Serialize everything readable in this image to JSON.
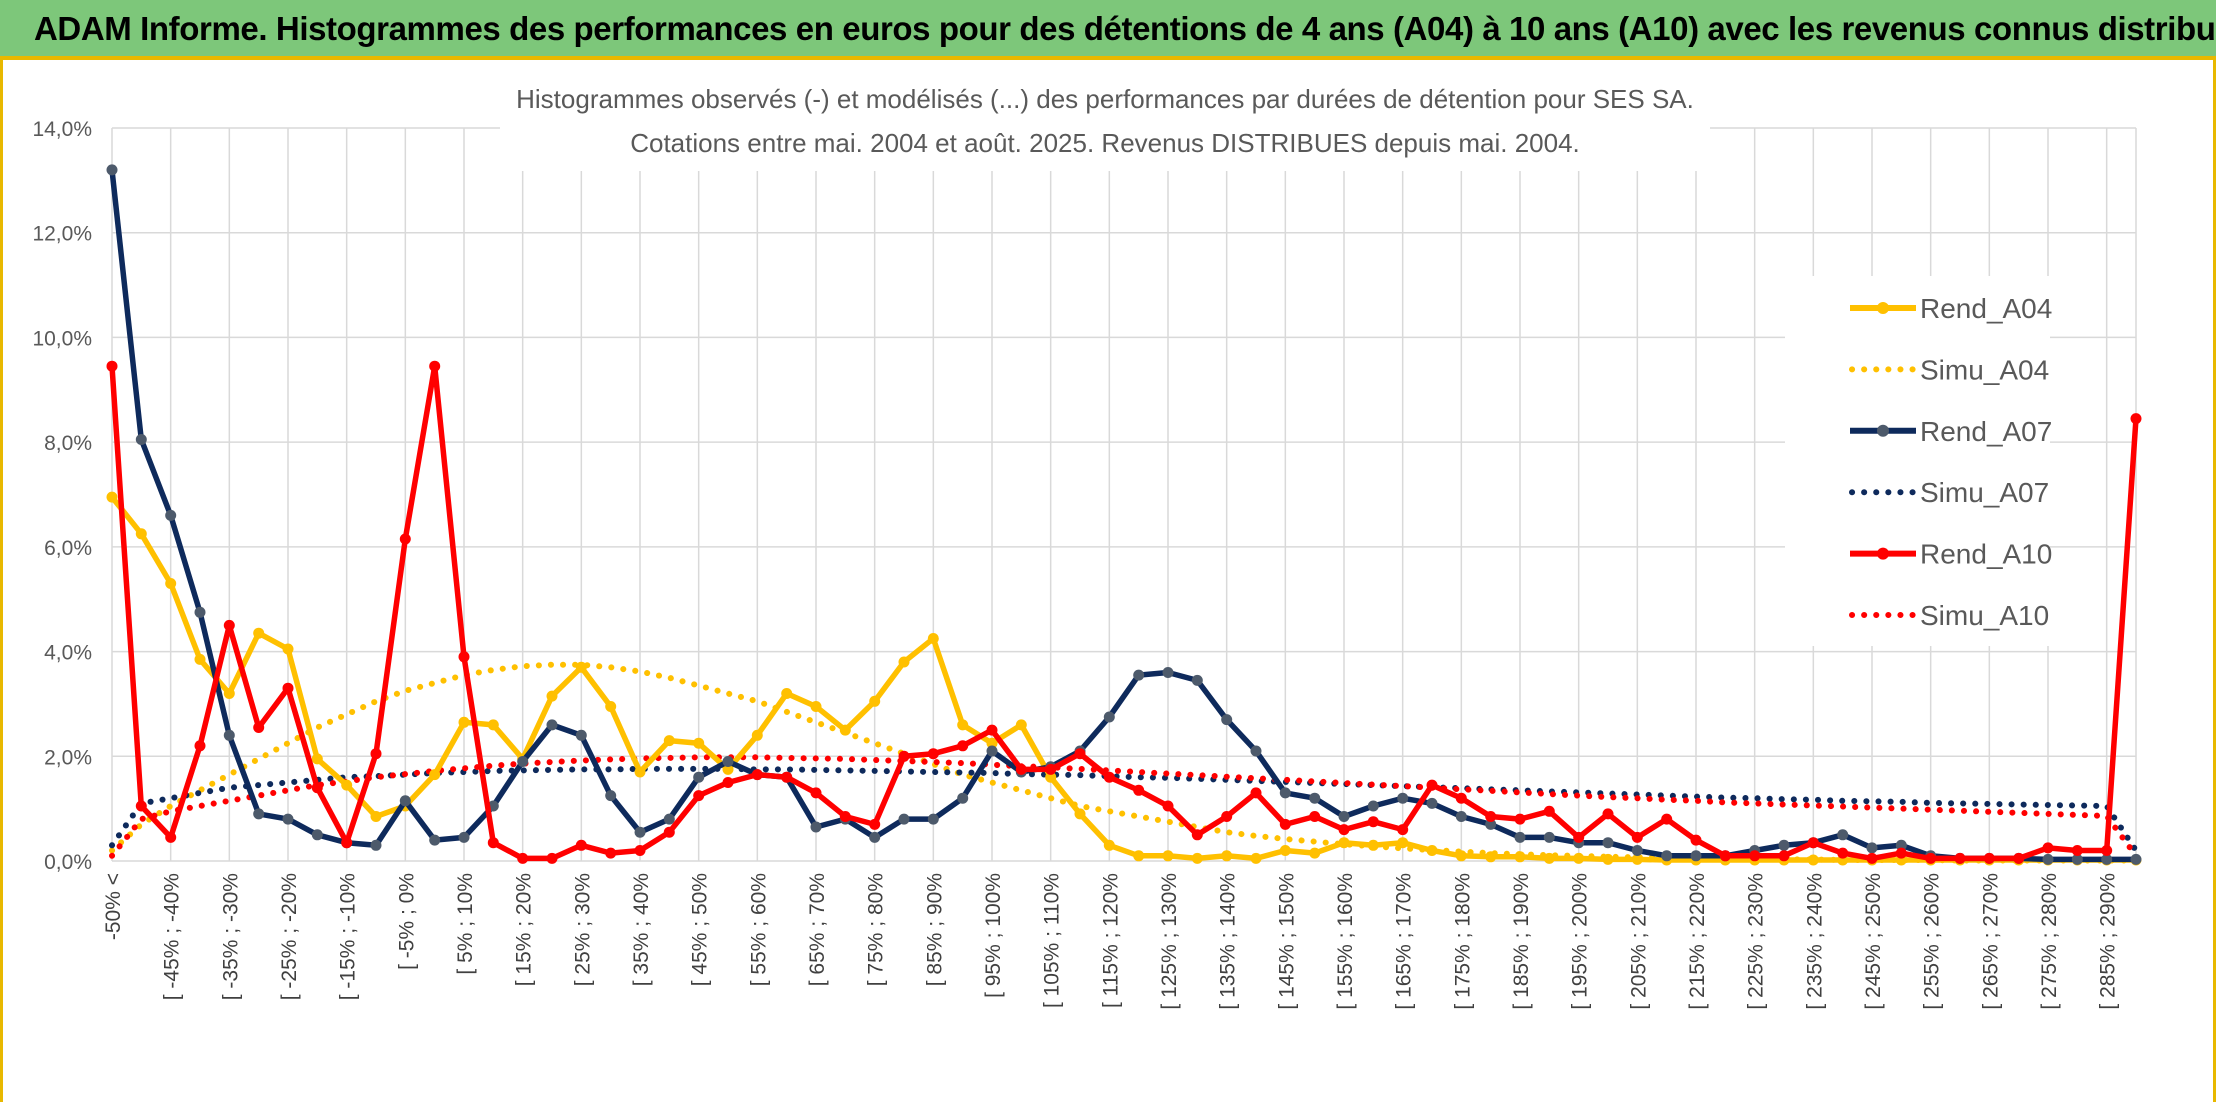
{
  "banner": {
    "title": "ADAM Informe. Histogrammes des performances en euros pour des détentions de 4 ans (A04) à 10 ans (A10) avec les revenus connus distribués"
  },
  "colors": {
    "banner_bg": "#7dc77a",
    "banner_rule": "#e8b800",
    "a04": "#ffc000",
    "a07": "#0e2a5c",
    "a07_marker": "#4d5a6b",
    "a10": "#ff0000",
    "grid": "#d9d9d9"
  },
  "chart_data": {
    "type": "line",
    "title": "Histogrammes observés (-) et modélisés (...) des performances par durées de détention pour SES SA.",
    "subtitle": "Cotations entre mai. 2004 et août. 2025. Revenus DISTRIBUES depuis mai. 2004.",
    "xlabel": "",
    "ylabel": "",
    "ylim": [
      0,
      14
    ],
    "yticks": [
      "0,0%",
      "2,0%",
      "4,0%",
      "6,0%",
      "8,0%",
      "10,0%",
      "12,0%",
      "14,0%"
    ],
    "grid": true,
    "legend_position": "right",
    "n_points": 70,
    "x_tick_labels": [
      "-50% <",
      "[ -45% ; -40%",
      "[ -35% ; -30%",
      "[ -25% ; -20%",
      "[ -15% ; -10%",
      "[ -5% ; 0%",
      "[ 5% ; 10%",
      "[ 15% ; 20%",
      "[ 25% ; 30%",
      "[ 35% ; 40%",
      "[ 45% ; 50%",
      "[ 55% ; 60%",
      "[ 65% ; 70%",
      "[ 75% ; 80%",
      "[ 85% ; 90%",
      "[ 95% ; 100%",
      "[ 105% ; 110%",
      "[ 115% ; 120%",
      "[ 125% ; 130%",
      "[ 135% ; 140%",
      "[ 145% ; 150%",
      "[ 155% ; 160%",
      "[ 165% ; 170%",
      "[ 175% ; 180%",
      "[ 185% ; 190%",
      "[ 195% ; 200%",
      "[ 205% ; 210%",
      "[ 215% ; 220%",
      "[ 225% ; 230%",
      "[ 235% ; 240%",
      "[ 245% ; 250%",
      "[ 255% ; 260%",
      "[ 265% ; 270%",
      "[ 275% ; 280%",
      "[ 285% ; 290%"
    ],
    "series": [
      {
        "name": "Rend_A04",
        "style": "solid",
        "color": "#ffc000",
        "values": [
          6.95,
          6.25,
          5.3,
          3.85,
          3.2,
          4.35,
          4.05,
          1.95,
          1.45,
          0.85,
          1.05,
          1.65,
          2.65,
          2.6,
          1.95,
          3.15,
          3.7,
          2.95,
          1.7,
          2.3,
          2.25,
          1.75,
          2.4,
          3.2,
          2.95,
          2.5,
          3.05,
          3.8,
          4.25,
          2.6,
          2.25,
          2.6,
          1.6,
          0.9,
          0.3,
          0.1,
          0.1,
          0.05,
          0.1,
          0.05,
          0.2,
          0.15,
          0.35,
          0.3,
          0.35,
          0.2,
          0.1,
          0.08,
          0.08,
          0.05,
          0.05,
          0.03,
          0.03,
          0.02,
          0.02,
          0.02,
          0.02,
          0.02,
          0.02,
          0.02,
          0.02,
          0.02,
          0.02,
          0.02,
          0.02,
          0.02,
          0.02,
          0.02,
          0.02,
          0.02
        ]
      },
      {
        "name": "Simu_A04",
        "style": "dotted",
        "color": "#ffc000",
        "values": [
          0.2,
          0.7,
          1.05,
          1.35,
          1.65,
          1.95,
          2.25,
          2.55,
          2.8,
          3.05,
          3.25,
          3.4,
          3.55,
          3.65,
          3.72,
          3.75,
          3.75,
          3.7,
          3.62,
          3.5,
          3.35,
          3.2,
          3.05,
          2.85,
          2.65,
          2.45,
          2.25,
          2.05,
          1.85,
          1.65,
          1.5,
          1.35,
          1.2,
          1.05,
          0.95,
          0.85,
          0.75,
          0.65,
          0.55,
          0.48,
          0.42,
          0.37,
          0.32,
          0.28,
          0.24,
          0.21,
          0.18,
          0.15,
          0.13,
          0.11,
          0.1,
          0.08,
          0.07,
          0.06,
          0.05,
          0.04,
          0.04,
          0.03,
          0.03,
          0.02,
          0.02,
          0.02,
          0.02,
          0.01,
          0.01,
          0.01,
          0.01,
          0.01,
          0.01,
          0.01
        ]
      },
      {
        "name": "Rend_A07",
        "style": "solid",
        "color": "#0e2a5c",
        "values": [
          13.2,
          8.05,
          6.6,
          4.75,
          2.4,
          0.9,
          0.8,
          0.5,
          0.35,
          0.3,
          1.15,
          0.4,
          0.45,
          1.05,
          1.9,
          2.6,
          2.4,
          1.25,
          0.55,
          0.8,
          1.6,
          1.9,
          1.65,
          1.6,
          0.65,
          0.8,
          0.45,
          0.8,
          0.8,
          1.2,
          2.1,
          1.7,
          1.8,
          2.1,
          2.75,
          3.55,
          3.6,
          3.45,
          2.7,
          2.1,
          1.3,
          1.2,
          0.85,
          1.05,
          1.2,
          1.1,
          0.85,
          0.7,
          0.45,
          0.45,
          0.35,
          0.35,
          0.2,
          0.1,
          0.1,
          0.1,
          0.2,
          0.3,
          0.35,
          0.5,
          0.25,
          0.3,
          0.1,
          0.05,
          0.05,
          0.05,
          0.03,
          0.03,
          0.03,
          0.03
        ]
      },
      {
        "name": "Simu_A07",
        "style": "dotted",
        "color": "#0e2a5c",
        "values": [
          0.3,
          1.1,
          1.2,
          1.3,
          1.4,
          1.45,
          1.5,
          1.55,
          1.6,
          1.62,
          1.65,
          1.68,
          1.7,
          1.72,
          1.73,
          1.74,
          1.75,
          1.75,
          1.76,
          1.76,
          1.76,
          1.76,
          1.75,
          1.75,
          1.74,
          1.73,
          1.72,
          1.71,
          1.7,
          1.69,
          1.68,
          1.66,
          1.65,
          1.64,
          1.62,
          1.6,
          1.59,
          1.57,
          1.55,
          1.53,
          1.51,
          1.49,
          1.47,
          1.45,
          1.43,
          1.41,
          1.39,
          1.37,
          1.35,
          1.33,
          1.31,
          1.29,
          1.27,
          1.25,
          1.23,
          1.21,
          1.2,
          1.18,
          1.17,
          1.15,
          1.14,
          1.13,
          1.11,
          1.1,
          1.09,
          1.08,
          1.07,
          1.06,
          1.05,
          0.2
        ]
      },
      {
        "name": "Rend_A10",
        "style": "solid",
        "color": "#ff0000",
        "values": [
          9.45,
          1.05,
          0.45,
          2.2,
          4.5,
          2.55,
          3.3,
          1.4,
          0.35,
          2.05,
          6.15,
          9.45,
          3.9,
          0.35,
          0.05,
          0.05,
          0.3,
          0.15,
          0.2,
          0.55,
          1.25,
          1.5,
          1.65,
          1.6,
          1.3,
          0.85,
          0.7,
          2.0,
          2.05,
          2.2,
          2.5,
          1.75,
          1.75,
          2.05,
          1.6,
          1.35,
          1.05,
          0.5,
          0.85,
          1.3,
          0.7,
          0.85,
          0.6,
          0.75,
          0.6,
          1.45,
          1.2,
          0.85,
          0.8,
          0.95,
          0.45,
          0.9,
          0.45,
          0.8,
          0.4,
          0.1,
          0.1,
          0.1,
          0.35,
          0.15,
          0.05,
          0.15,
          0.05,
          0.05,
          0.05,
          0.05,
          0.25,
          0.2,
          0.2,
          8.45
        ]
      },
      {
        "name": "Simu_A10",
        "style": "dotted",
        "color": "#ff0000",
        "values": [
          0.1,
          0.8,
          0.95,
          1.05,
          1.15,
          1.25,
          1.35,
          1.45,
          1.52,
          1.6,
          1.66,
          1.72,
          1.77,
          1.82,
          1.86,
          1.89,
          1.92,
          1.94,
          1.96,
          1.97,
          1.98,
          1.98,
          1.98,
          1.97,
          1.96,
          1.95,
          1.93,
          1.91,
          1.89,
          1.87,
          1.84,
          1.81,
          1.79,
          1.76,
          1.73,
          1.7,
          1.67,
          1.64,
          1.61,
          1.58,
          1.55,
          1.52,
          1.49,
          1.46,
          1.43,
          1.4,
          1.37,
          1.34,
          1.31,
          1.28,
          1.25,
          1.22,
          1.2,
          1.17,
          1.15,
          1.12,
          1.1,
          1.08,
          1.06,
          1.04,
          1.02,
          1.0,
          0.98,
          0.96,
          0.94,
          0.92,
          0.9,
          0.88,
          0.86,
          0.1
        ]
      }
    ]
  }
}
